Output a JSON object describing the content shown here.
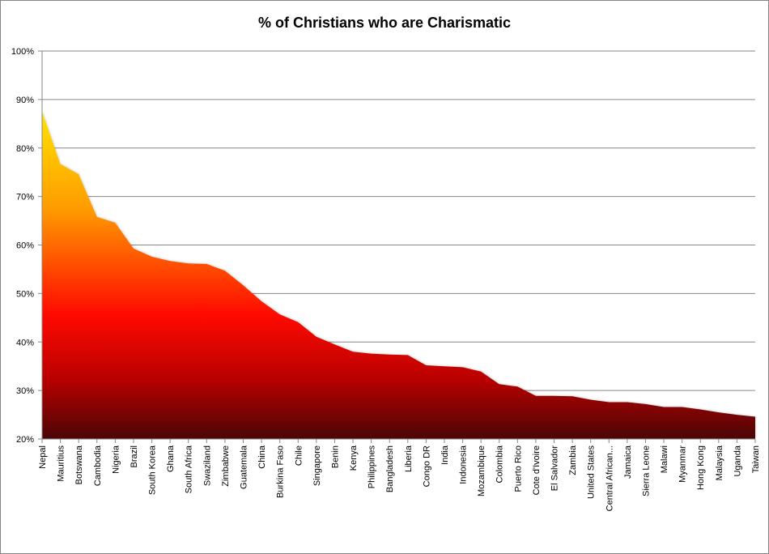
{
  "chart_data": {
    "type": "area",
    "title": "% of Christians who are Charismatic",
    "xlabel": "",
    "ylabel": "",
    "ylim": [
      20,
      100
    ],
    "y_ticks": [
      "20%",
      "30%",
      "40%",
      "50%",
      "60%",
      "70%",
      "80%",
      "90%",
      "100%"
    ],
    "grid": true,
    "legend": "none",
    "fill_gradient": [
      "#ffe400",
      "#ff9a00",
      "#ff0a00",
      "#b80000",
      "#4a0606"
    ],
    "categories": [
      "Nepal",
      "Mauritius",
      "Botswana",
      "Cambodia",
      "Nigeria",
      "Brazil",
      "South Korea",
      "Ghana",
      "South Africa",
      "Swaziland",
      "Zimbabwe",
      "Guatemala",
      "China",
      "Burkina Faso",
      "Chile",
      "Singapore",
      "Benin",
      "Kenya",
      "Philippines",
      "Bangladesh",
      "Liberia",
      "Congo DR",
      "India",
      "Indonesia",
      "Mozambique",
      "Colombia",
      "Puerto Rico",
      "Cote d'Ivoire",
      "El Salvador",
      "Zambia",
      "United States",
      "Central African...",
      "Jamaica",
      "Sierra Leone",
      "Malawi",
      "Myanmar",
      "Hong Kong",
      "Malaysia",
      "Uganda",
      "Taiwan"
    ],
    "values": [
      87.5,
      76.7,
      74.6,
      65.8,
      64.6,
      59.3,
      57.6,
      56.7,
      56.2,
      56.1,
      54.7,
      51.7,
      48.4,
      45.7,
      44.1,
      41.1,
      39.5,
      38.0,
      37.6,
      37.4,
      37.3,
      35.2,
      35.0,
      34.8,
      33.9,
      31.3,
      30.8,
      28.9,
      28.9,
      28.8,
      28.1,
      27.6,
      27.6,
      27.2,
      26.6,
      26.6,
      26.1,
      25.5,
      25.0,
      24.6
    ]
  }
}
